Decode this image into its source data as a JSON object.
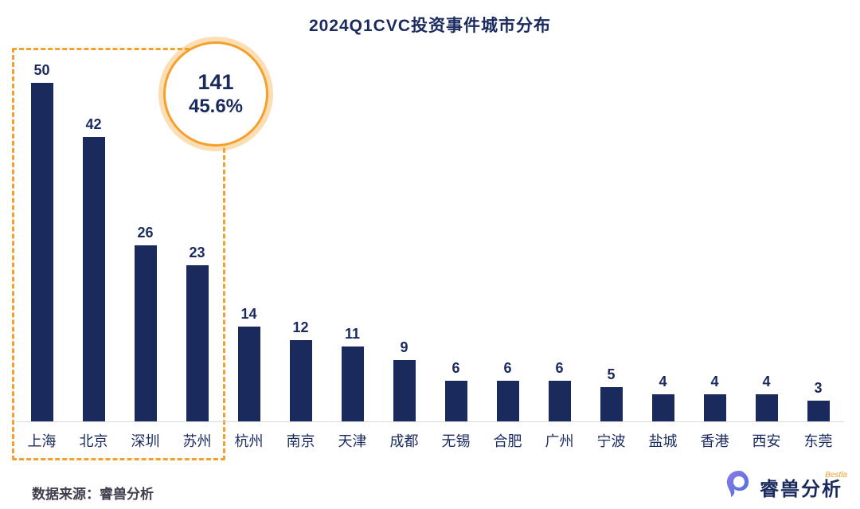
{
  "title": "2024Q1CVC投资事件城市分布",
  "chart_data": {
    "type": "bar",
    "title": "2024Q1CVC投资事件城市分布",
    "categories": [
      "上海",
      "北京",
      "深圳",
      "苏州",
      "杭州",
      "南京",
      "天津",
      "成都",
      "无锡",
      "合肥",
      "广州",
      "宁波",
      "盐城",
      "香港",
      "西安",
      "东莞"
    ],
    "values": [
      50,
      42,
      26,
      23,
      14,
      12,
      11,
      9,
      6,
      6,
      6,
      5,
      4,
      4,
      4,
      3
    ],
    "xlabel": "",
    "ylabel": "",
    "ylim": [
      0,
      50
    ],
    "grid": false,
    "legend": "none",
    "bar_color": "#1b2a5c",
    "highlight": {
      "cities_count": 4,
      "total": "141",
      "percent": "45.6%",
      "accent_color": "#f5a02c"
    }
  },
  "footer": {
    "source": "数据来源：睿兽分析"
  },
  "logo": {
    "text": "睿兽分析",
    "sub": "Bestla",
    "color": "#6a5ad1"
  }
}
